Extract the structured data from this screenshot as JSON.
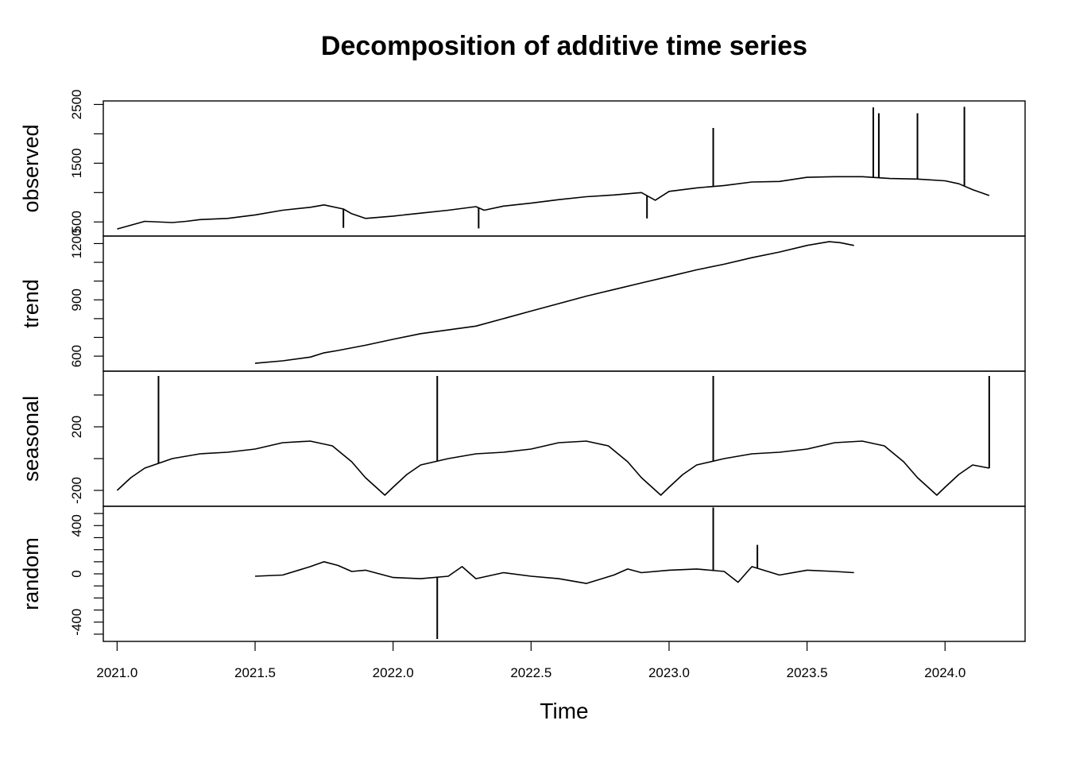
{
  "chart_data": {
    "type": "line",
    "title": "Decomposition of additive time series",
    "xlabel": "Time",
    "xlim": [
      2020.95,
      2024.29
    ],
    "x_ticks": [
      2021.0,
      2021.5,
      2022.0,
      2022.5,
      2023.0,
      2023.5,
      2024.0
    ],
    "x_tick_labels": [
      "2021.0",
      "2021.5",
      "2022.0",
      "2022.5",
      "2023.0",
      "2023.5",
      "2024.0"
    ],
    "grid": false,
    "legend": "none",
    "line_color": "#000000",
    "panels": [
      {
        "name": "observed",
        "ylabel": "observed",
        "ylim": [
          260,
          2560
        ],
        "y_major_ticks": [
          500,
          1500,
          2500
        ],
        "y_major_labels": [
          "500",
          "1500",
          "2500"
        ],
        "y_minor_ticks": [
          1000,
          2000
        ],
        "x": [
          2021.0,
          2021.1,
          2021.2,
          2021.25,
          2021.3,
          2021.4,
          2021.5,
          2021.6,
          2021.7,
          2021.75,
          2021.82,
          2021.85,
          2021.9,
          2022.0,
          2022.1,
          2022.2,
          2022.3,
          2022.33,
          2022.4,
          2022.5,
          2022.6,
          2022.7,
          2022.8,
          2022.9,
          2022.95,
          2023.0,
          2023.1,
          2023.15,
          2023.2,
          2023.3,
          2023.4,
          2023.5,
          2023.6,
          2023.7,
          2023.8,
          2023.9,
          2024.0,
          2024.05,
          2024.1,
          2024.16
        ],
        "values": [
          380,
          510,
          490,
          510,
          540,
          560,
          620,
          700,
          750,
          790,
          720,
          640,
          560,
          600,
          650,
          700,
          760,
          700,
          770,
          820,
          880,
          930,
          960,
          1000,
          870,
          1020,
          1080,
          1100,
          1120,
          1180,
          1190,
          1260,
          1270,
          1270,
          1240,
          1230,
          1200,
          1150,
          1050,
          950
        ],
        "spikes": [
          {
            "x": 2021.82,
            "value": 400
          },
          {
            "x": 2022.31,
            "value": 390
          },
          {
            "x": 2022.92,
            "value": 560
          },
          {
            "x": 2023.16,
            "value": 2100
          },
          {
            "x": 2023.74,
            "value": 2450
          },
          {
            "x": 2023.76,
            "value": 2350
          },
          {
            "x": 2023.9,
            "value": 2350
          },
          {
            "x": 2024.07,
            "value": 2460
          }
        ]
      },
      {
        "name": "trend",
        "ylabel": "trend",
        "ylim": [
          520,
          1240
        ],
        "y_major_ticks": [
          600,
          900,
          1200
        ],
        "y_major_labels": [
          "600",
          "900",
          "1200"
        ],
        "y_minor_ticks": [
          700,
          800,
          1000,
          1100
        ],
        "x": [
          2021.5,
          2021.6,
          2021.7,
          2021.75,
          2021.8,
          2021.9,
          2022.0,
          2022.1,
          2022.2,
          2022.3,
          2022.4,
          2022.5,
          2022.6,
          2022.7,
          2022.8,
          2022.9,
          2023.0,
          2023.1,
          2023.2,
          2023.3,
          2023.4,
          2023.5,
          2023.58,
          2023.62,
          2023.67
        ],
        "values": [
          562,
          575,
          595,
          618,
          630,
          658,
          690,
          720,
          740,
          760,
          800,
          840,
          880,
          920,
          955,
          990,
          1025,
          1060,
          1090,
          1125,
          1155,
          1190,
          1210,
          1205,
          1190
        ]
      },
      {
        "name": "seasonal",
        "ylabel": "seasonal",
        "ylim": [
          -300,
          550
        ],
        "y_major_ticks": [
          -200,
          200
        ],
        "y_major_labels": [
          "-200",
          "200"
        ],
        "y_minor_ticks": [
          0,
          400
        ],
        "x": [
          2021.0,
          2021.05,
          2021.1,
          2021.2,
          2021.3,
          2021.4,
          2021.5,
          2021.6,
          2021.7,
          2021.78,
          2021.85,
          2021.9,
          2021.97,
          2022.0,
          2022.05,
          2022.1,
          2022.2,
          2022.3,
          2022.4,
          2022.5,
          2022.6,
          2022.7,
          2022.78,
          2022.85,
          2022.9,
          2022.97,
          2023.0,
          2023.05,
          2023.1,
          2023.2,
          2023.3,
          2023.4,
          2023.5,
          2023.6,
          2023.7,
          2023.78,
          2023.85,
          2023.9,
          2023.97,
          2024.0,
          2024.05,
          2024.1,
          2024.16
        ],
        "values": [
          -200,
          -120,
          -60,
          0,
          30,
          40,
          60,
          100,
          110,
          80,
          -20,
          -120,
          -230,
          -180,
          -100,
          -40,
          0,
          30,
          40,
          60,
          100,
          110,
          80,
          -20,
          -120,
          -230,
          -180,
          -100,
          -40,
          0,
          30,
          40,
          60,
          100,
          110,
          80,
          -20,
          -120,
          -230,
          -180,
          -100,
          -40,
          -60
        ],
        "spikes": [
          {
            "x": 2021.15,
            "value": 520
          },
          {
            "x": 2022.16,
            "value": 520
          },
          {
            "x": 2023.16,
            "value": 520
          },
          {
            "x": 2024.16,
            "value": 520
          }
        ]
      },
      {
        "name": "random",
        "ylabel": "random",
        "ylim": [
          -560,
          560
        ],
        "y_major_ticks": [
          -400,
          0,
          400
        ],
        "y_major_labels": [
          "-400",
          "0",
          "400"
        ],
        "y_minor_ticks": [
          -500,
          -300,
          -200,
          -100,
          100,
          200,
          300,
          500
        ],
        "x": [
          2021.5,
          2021.6,
          2021.7,
          2021.75,
          2021.8,
          2021.85,
          2021.9,
          2022.0,
          2022.1,
          2022.2,
          2022.25,
          2022.3,
          2022.4,
          2022.5,
          2022.6,
          2022.7,
          2022.8,
          2022.85,
          2022.9,
          2023.0,
          2023.1,
          2023.2,
          2023.25,
          2023.3,
          2023.4,
          2023.5,
          2023.6,
          2023.67
        ],
        "values": [
          -20,
          -10,
          60,
          100,
          70,
          20,
          30,
          -30,
          -40,
          -20,
          60,
          -40,
          10,
          -20,
          -40,
          -80,
          -10,
          40,
          10,
          30,
          40,
          20,
          -70,
          60,
          -10,
          30,
          20,
          10
        ],
        "spikes": [
          {
            "x": 2022.16,
            "value": -540
          },
          {
            "x": 2023.16,
            "value": 550
          },
          {
            "x": 2023.32,
            "value": 240
          }
        ]
      }
    ]
  }
}
